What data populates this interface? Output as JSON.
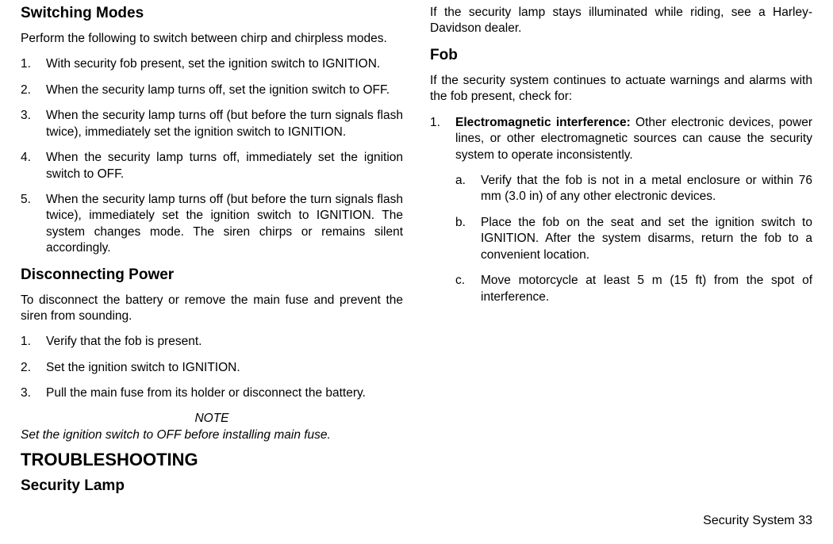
{
  "left": {
    "heading_switching": "Switching Modes",
    "intro_switching": "Perform the following to switch between chirp and chirpless modes.",
    "switching_steps": [
      "With security fob present, set the ignition switch to IGNI­TION.",
      "When the security lamp turns off, set the ignition switch to OFF.",
      "When the security lamp turns off (but before the turn sig­nals flash twice), immediately set the ignition switch to IGNITION.",
      "When the security lamp turns off, immediately set the ignition switch to OFF.",
      "When the security lamp turns off (but before the turn sig­nals flash twice), immediately set the ignition switch to IGNITION. The system changes mode. The siren chirps or remains silent accordingly."
    ],
    "heading_disconnect": "Disconnecting Power",
    "intro_disconnect": "To disconnect the battery or remove the main fuse and prevent the siren from sounding.",
    "disconnect_steps_first_two": [
      "Verify that the fob is present.",
      "Set the ignition switch to IGNITION."
    ]
  },
  "right": {
    "disconnect_step3_num": "3.",
    "disconnect_step3": "Pull the main fuse from its holder or disconnect the battery.",
    "note_label": "NOTE",
    "note_body": "Set the ignition switch to OFF before installing main fuse.",
    "heading_troubleshooting": "TROUBLESHOOTING",
    "heading_lamp": "Security Lamp",
    "lamp_body": "If the security lamp stays illuminated while riding, see a Harley-Davidson dealer.",
    "heading_fob": "Fob",
    "fob_intro": "If the security system continues to actuate warnings and alarms with the fob present, check for:",
    "fob_item1_num": "1.",
    "fob_item1_bold": "Electromagnetic interference: ",
    "fob_item1_rest": "Other electronic devices, power lines, or other electromagnetic sources can cause the security system to operate inconsistently.",
    "fob_sub": [
      {
        "letter": "a.",
        "text": "Verify that the fob is not in a metal enclosure or within 76 mm (3.0 in) of any other electronic devices."
      },
      {
        "letter": "b.",
        "text": "Place the fob on the seat and set the ignition switch to IGNITION. After the system disarms, return the fob to a convenient location."
      },
      {
        "letter": "c.",
        "text": "Move motorcycle at least 5 m (15 ft) from the spot of interference."
      }
    ]
  },
  "footer": {
    "text": "Security System   33"
  }
}
